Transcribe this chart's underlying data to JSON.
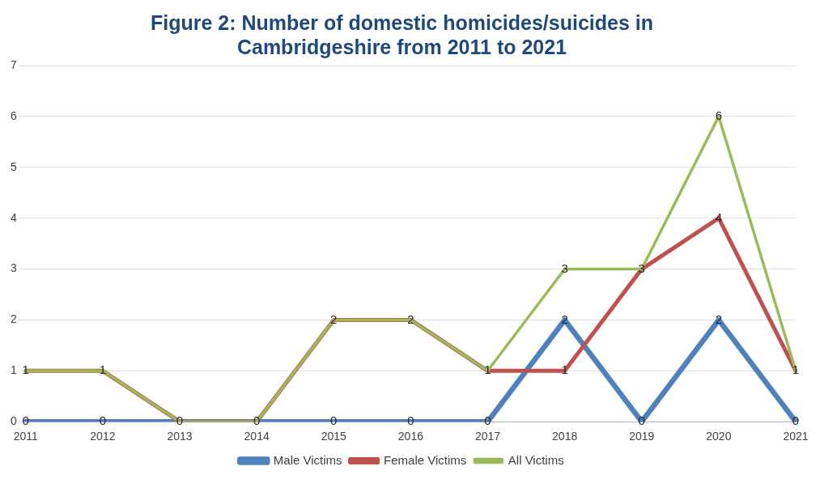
{
  "chart_data": {
    "type": "line",
    "title": "Figure 2: Number of domestic homicides/suicides in Cambridgeshire from 2011 to 2021",
    "categories": [
      "2011",
      "2012",
      "2013",
      "2014",
      "2015",
      "2016",
      "2017",
      "2018",
      "2019",
      "2020",
      "2021"
    ],
    "series": [
      {
        "name": "Male Victims",
        "color": "#4f81bd",
        "values": [
          0,
          0,
          0,
          0,
          0,
          0,
          0,
          2,
          0,
          2,
          0
        ],
        "value_labels": [
          "0",
          "0",
          "0",
          "0",
          "0",
          "0",
          "0",
          "2",
          "0",
          "2",
          "0"
        ]
      },
      {
        "name": "Female Victims",
        "color": "#c0504d",
        "values": [
          1,
          1,
          0,
          0,
          2,
          2,
          1,
          1,
          3,
          4,
          1
        ],
        "value_labels": [
          null,
          null,
          null,
          null,
          null,
          null,
          null,
          "1",
          null,
          "4",
          null
        ]
      },
      {
        "name": "All Victims",
        "color": "#9bbb59",
        "values": [
          1,
          1,
          0,
          0,
          2,
          2,
          1,
          3,
          3,
          6,
          1
        ],
        "value_labels": [
          "1",
          "1",
          null,
          null,
          "2",
          "2",
          "1",
          "3",
          "3",
          "6",
          "1"
        ]
      }
    ],
    "ylim": [
      0,
      7
    ],
    "yticks": [
      0,
      1,
      2,
      3,
      4,
      5,
      6,
      7
    ],
    "grid": "y",
    "legend": "bottom",
    "marker": "none",
    "line_style": "solid"
  }
}
